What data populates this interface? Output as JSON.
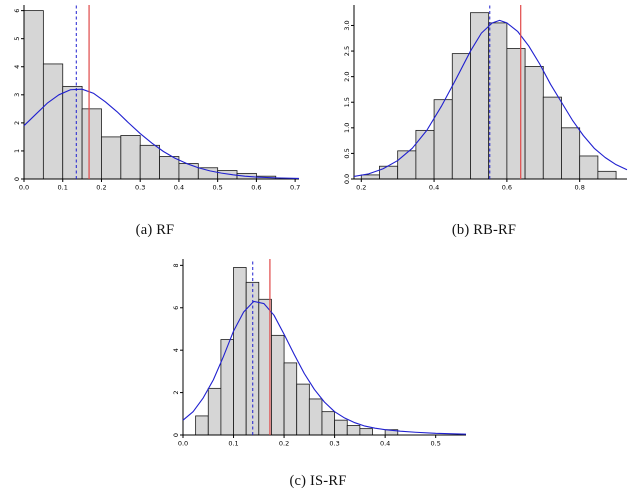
{
  "colors": {
    "background": "#ffffff",
    "bar_fill": "#d6d6d6",
    "bar_stroke": "#1a1a1a",
    "curve": "#2020d0",
    "dashed_line": "#2020d0",
    "solid_line": "#e04848",
    "axis": "#000000",
    "caption_text": "#111111"
  },
  "chart_data": [
    {
      "type": "bar",
      "subtype": "histogram-with-density",
      "caption": "(a) RF",
      "title": "",
      "xlabel": "",
      "ylabel": "",
      "xlim": [
        0.0,
        0.71
      ],
      "ylim": [
        0,
        6.2
      ],
      "xtick_values": [
        0.0,
        0.1,
        0.2,
        0.3,
        0.4,
        0.5,
        0.6,
        0.7
      ],
      "xtick_labels": [
        "0.0",
        "0.1",
        "0.2",
        "0.3",
        "0.4",
        "0.5",
        "0.6",
        "0.7"
      ],
      "ytick_values": [
        0,
        1,
        2,
        3,
        4,
        5,
        6
      ],
      "ytick_labels": [
        "0",
        "1",
        "2",
        "3",
        "4",
        "5",
        "6"
      ],
      "bin_start": 0.0,
      "bin_width": 0.05,
      "bar_heights": [
        6.0,
        4.1,
        3.3,
        2.5,
        1.5,
        1.55,
        1.2,
        0.8,
        0.55,
        0.4,
        0.3,
        0.2,
        0.1
      ],
      "curve_points": [
        [
          0.0,
          1.9
        ],
        [
          0.03,
          2.3
        ],
        [
          0.06,
          2.7
        ],
        [
          0.09,
          3.0
        ],
        [
          0.12,
          3.18
        ],
        [
          0.15,
          3.2
        ],
        [
          0.18,
          3.05
        ],
        [
          0.21,
          2.75
        ],
        [
          0.24,
          2.4
        ],
        [
          0.27,
          2.0
        ],
        [
          0.3,
          1.62
        ],
        [
          0.33,
          1.28
        ],
        [
          0.36,
          0.98
        ],
        [
          0.39,
          0.74
        ],
        [
          0.42,
          0.55
        ],
        [
          0.45,
          0.4
        ],
        [
          0.48,
          0.29
        ],
        [
          0.51,
          0.21
        ],
        [
          0.54,
          0.15
        ],
        [
          0.57,
          0.1
        ],
        [
          0.6,
          0.07
        ],
        [
          0.65,
          0.04
        ],
        [
          0.71,
          0.02
        ]
      ],
      "dashed_line_x": 0.135,
      "solid_line_x": 0.168,
      "grid": false,
      "legend": "none"
    },
    {
      "type": "bar",
      "subtype": "histogram-with-density",
      "caption": "(b) RB-RF",
      "title": "",
      "xlabel": "",
      "ylabel": "",
      "xlim": [
        0.18,
        0.93
      ],
      "ylim": [
        0,
        3.4
      ],
      "xtick_values": [
        0.2,
        0.4,
        0.6,
        0.8
      ],
      "xtick_labels": [
        "0.2",
        "0.4",
        "0.6",
        "0.8"
      ],
      "ytick_values": [
        0,
        0.5,
        1.0,
        1.5,
        2.0,
        2.5,
        3.0
      ],
      "ytick_labels": [
        "0.0",
        "0.5",
        "1.0",
        "1.5",
        "2.0",
        "2.5",
        "3.0"
      ],
      "bin_start": 0.2,
      "bin_width": 0.05,
      "bar_heights": [
        0.08,
        0.25,
        0.55,
        0.95,
        1.55,
        2.45,
        3.25,
        3.05,
        2.55,
        2.2,
        1.6,
        1.0,
        0.45,
        0.15
      ],
      "curve_points": [
        [
          0.18,
          0.05
        ],
        [
          0.22,
          0.1
        ],
        [
          0.26,
          0.2
        ],
        [
          0.3,
          0.36
        ],
        [
          0.34,
          0.6
        ],
        [
          0.38,
          0.95
        ],
        [
          0.42,
          1.42
        ],
        [
          0.46,
          1.95
        ],
        [
          0.5,
          2.5
        ],
        [
          0.53,
          2.85
        ],
        [
          0.56,
          3.05
        ],
        [
          0.58,
          3.1
        ],
        [
          0.6,
          3.05
        ],
        [
          0.63,
          2.88
        ],
        [
          0.66,
          2.6
        ],
        [
          0.69,
          2.25
        ],
        [
          0.72,
          1.85
        ],
        [
          0.75,
          1.5
        ],
        [
          0.78,
          1.15
        ],
        [
          0.81,
          0.85
        ],
        [
          0.84,
          0.6
        ],
        [
          0.87,
          0.42
        ],
        [
          0.9,
          0.28
        ],
        [
          0.93,
          0.18
        ]
      ],
      "dashed_line_x": 0.553,
      "solid_line_x": 0.638,
      "grid": false,
      "legend": "none"
    },
    {
      "type": "bar",
      "subtype": "histogram-with-density",
      "caption": "(c) IS-RF",
      "title": "",
      "xlabel": "",
      "ylabel": "",
      "xlim": [
        0.0,
        0.56
      ],
      "ylim": [
        0,
        8.3
      ],
      "xtick_values": [
        0.0,
        0.1,
        0.2,
        0.3,
        0.4,
        0.5
      ],
      "xtick_labels": [
        "0.0",
        "0.1",
        "0.2",
        "0.3",
        "0.4",
        "0.5"
      ],
      "ytick_values": [
        0,
        2,
        4,
        6,
        8
      ],
      "ytick_labels": [
        "0",
        "2",
        "4",
        "6",
        "8"
      ],
      "bin_start": 0.025,
      "bin_width": 0.025,
      "bar_heights": [
        0.9,
        2.2,
        4.5,
        7.9,
        7.2,
        6.4,
        4.7,
        3.4,
        2.4,
        1.7,
        1.1,
        0.7,
        0.45,
        0.3,
        0,
        0.25
      ],
      "curve_points": [
        [
          0.0,
          0.7
        ],
        [
          0.02,
          1.1
        ],
        [
          0.04,
          1.75
        ],
        [
          0.06,
          2.6
        ],
        [
          0.08,
          3.7
        ],
        [
          0.1,
          4.9
        ],
        [
          0.12,
          5.8
        ],
        [
          0.14,
          6.3
        ],
        [
          0.16,
          6.2
        ],
        [
          0.18,
          5.65
        ],
        [
          0.2,
          4.75
        ],
        [
          0.22,
          3.8
        ],
        [
          0.24,
          2.9
        ],
        [
          0.26,
          2.15
        ],
        [
          0.28,
          1.55
        ],
        [
          0.3,
          1.1
        ],
        [
          0.32,
          0.8
        ],
        [
          0.34,
          0.58
        ],
        [
          0.36,
          0.42
        ],
        [
          0.38,
          0.32
        ],
        [
          0.4,
          0.25
        ],
        [
          0.43,
          0.18
        ],
        [
          0.46,
          0.13
        ],
        [
          0.5,
          0.08
        ],
        [
          0.56,
          0.04
        ]
      ],
      "dashed_line_x": 0.138,
      "solid_line_x": 0.172,
      "grid": false,
      "legend": "none"
    }
  ]
}
